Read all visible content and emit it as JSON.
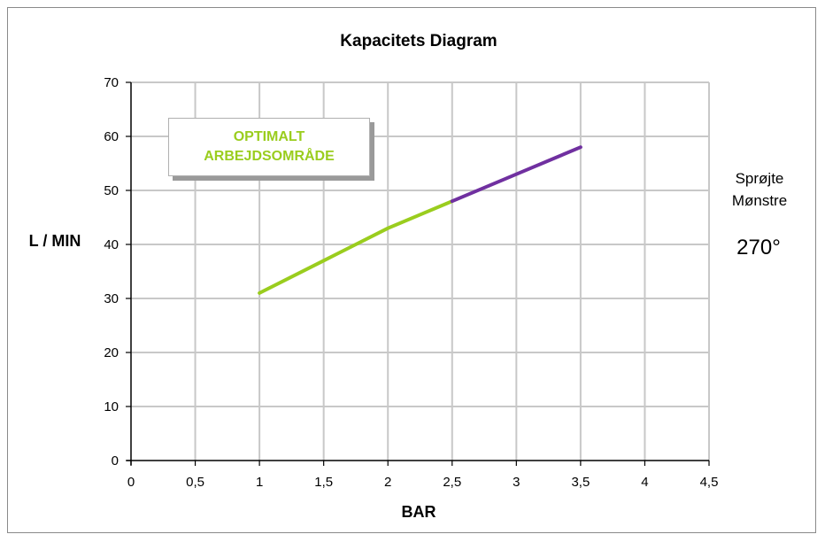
{
  "chart_data": {
    "type": "line",
    "title": "Kapacitets Diagram",
    "xlabel": "BAR",
    "ylabel": "L / MIN",
    "xlim": [
      0,
      4.5
    ],
    "ylim": [
      0,
      70
    ],
    "x_ticks": [
      0,
      0.5,
      1,
      1.5,
      2,
      2.5,
      3,
      3.5,
      4,
      4.5
    ],
    "x_tick_labels": [
      "0",
      "0,5",
      "1",
      "1,5",
      "2",
      "2,5",
      "3",
      "3,5",
      "4",
      "4,5"
    ],
    "y_ticks": [
      0,
      10,
      20,
      30,
      40,
      50,
      60,
      70
    ],
    "y_tick_labels": [
      "0",
      "10",
      "20",
      "30",
      "40",
      "50",
      "60",
      "70"
    ],
    "grid": true,
    "series": [
      {
        "color": "#9acd1e",
        "x": [
          1,
          1.5,
          1.75,
          2,
          2.25,
          2.5
        ],
        "y": [
          31,
          37,
          40,
          43,
          45.5,
          48
        ]
      },
      {
        "color": "#7030a0",
        "x": [
          2.5,
          3,
          3.5
        ],
        "y": [
          48,
          53,
          58
        ]
      }
    ],
    "annotation": {
      "line1": "OPTIMALT",
      "line2": "ARBEJDSOMRÅDE",
      "color": "#9acd1e"
    },
    "side_text": {
      "line1": "Sprøjte",
      "line2": "Mønstre",
      "angle": "270°"
    }
  }
}
